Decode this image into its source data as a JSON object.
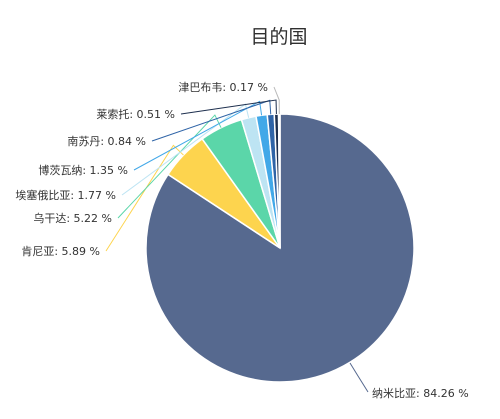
{
  "chart_data": {
    "type": "pie",
    "title": "目的国",
    "slices": [
      {
        "label": "纳米比亚",
        "value": 84.26,
        "value_label": "84.26 %",
        "color": "#56698f"
      },
      {
        "label": "肯尼亚",
        "value": 5.89,
        "value_label": "5.89 %",
        "color": "#fdd44e"
      },
      {
        "label": "乌干达",
        "value": 5.22,
        "value_label": "5.22 %",
        "color": "#5bd6a9"
      },
      {
        "label": "埃塞俄比亚",
        "value": 1.77,
        "value_label": "1.77 %",
        "color": "#bde4f3"
      },
      {
        "label": "博茨瓦纳",
        "value": 1.35,
        "value_label": "1.35 %",
        "color": "#42a8e8"
      },
      {
        "label": "南苏丹",
        "value": 0.84,
        "value_label": "0.84 %",
        "color": "#2f64a7"
      },
      {
        "label": "莱索托",
        "value": 0.51,
        "value_label": "0.51 %",
        "color": "#1d2f4e"
      },
      {
        "label": "津巴布韦",
        "value": 0.17,
        "value_label": "0.17 %",
        "color": "#d7d7d7"
      }
    ]
  }
}
